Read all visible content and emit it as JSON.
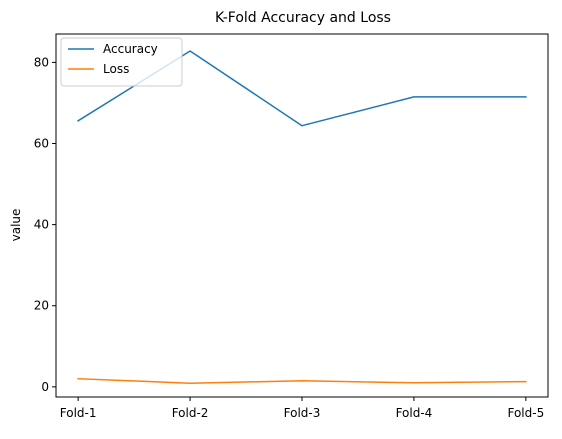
{
  "chart_data": {
    "type": "line",
    "title": "K-Fold Accuracy and Loss",
    "xlabel": "",
    "ylabel": "value",
    "categories": [
      "Fold-1",
      "Fold-2",
      "Fold-3",
      "Fold-4",
      "Fold-5"
    ],
    "series": [
      {
        "name": "Accuracy",
        "color": "#1f77b4",
        "values": [
          65.6,
          82.8,
          64.4,
          71.5,
          71.5
        ]
      },
      {
        "name": "Loss",
        "color": "#ff7f0e",
        "values": [
          2.0,
          0.9,
          1.5,
          1.0,
          1.3
        ]
      }
    ],
    "ylim": [
      -2.5,
      87.0
    ],
    "yticks": [
      0,
      20,
      40,
      60,
      80
    ],
    "grid": false,
    "legend_position": "top-left"
  }
}
